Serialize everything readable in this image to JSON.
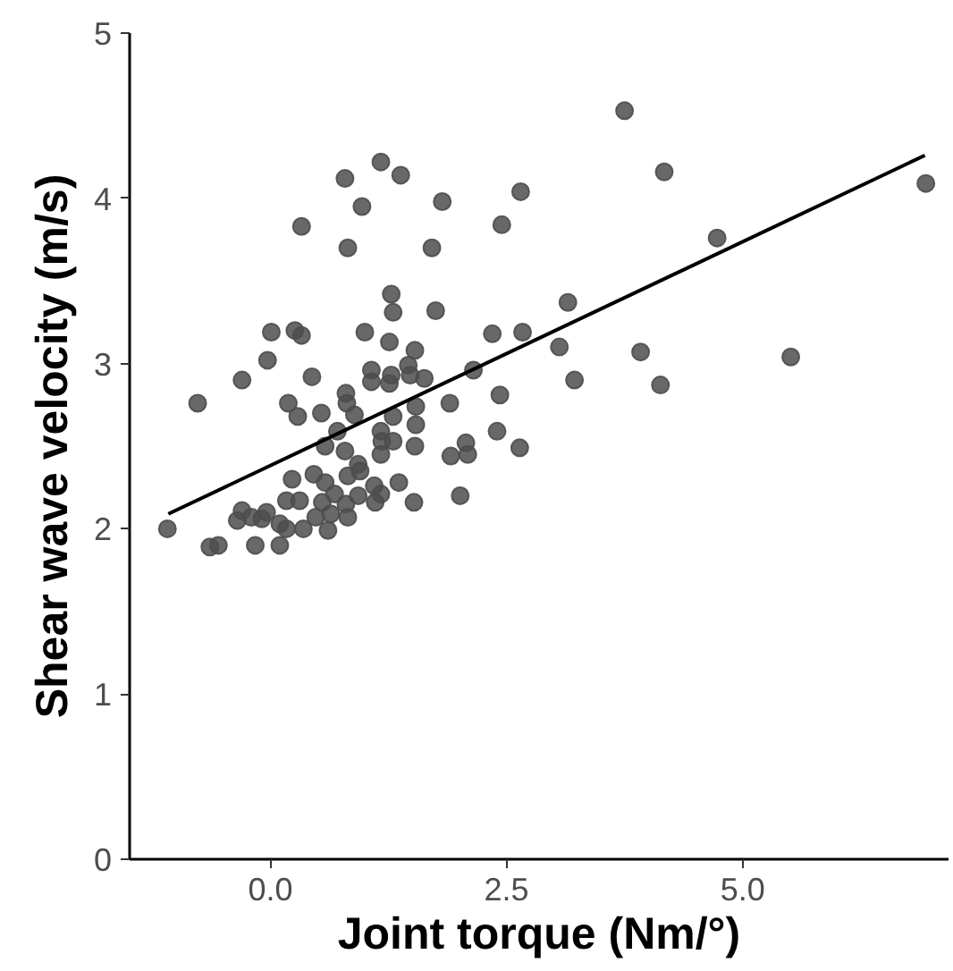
{
  "chart_data": {
    "type": "scatter",
    "xlabel": "Joint torque (Nm/°)",
    "ylabel": "Shear wave velocity (m/s)",
    "xlim": [
      -1.49,
      7.18
    ],
    "ylim": [
      0,
      5
    ],
    "xticks": [
      {
        "value": 0,
        "label": "0.0"
      },
      {
        "value": 2.5,
        "label": "2.5"
      },
      {
        "value": 5,
        "label": "5.0"
      }
    ],
    "yticks": [
      0,
      1,
      2,
      3,
      4,
      5
    ],
    "grid": false,
    "series": [
      {
        "marker": "circle",
        "color": "#4d4d4d",
        "x": [
          -1.09,
          -0.77,
          -0.64,
          -0.55,
          -0.3,
          -0.03,
          0.01,
          0.26,
          0.33,
          0.44,
          0.19,
          0.29,
          0.54,
          -0.35,
          -0.3,
          -0.2,
          -0.09,
          -0.04,
          -0.16,
          0.1,
          0.1,
          0.17,
          0.35,
          0.17,
          0.31,
          0.23,
          0.46,
          0.58,
          0.48,
          0.55,
          0.61,
          0.64,
          0.68,
          0.8,
          0.82,
          0.82,
          0.93,
          0.95,
          0.93,
          1.1,
          1.17,
          1.11,
          1.36,
          1.52,
          2.01,
          0.58,
          0.71,
          0.79,
          0.8,
          0.81,
          0.89,
          1.0,
          1.07,
          1.07,
          1.17,
          1.18,
          1.17,
          1.3,
          1.3,
          1.26,
          1.26,
          1.28,
          1.28,
          1.3,
          1.46,
          1.48,
          1.53,
          1.63,
          1.54,
          1.54,
          1.53,
          1.75,
          1.9,
          1.91,
          2.07,
          2.09,
          2.15,
          2.35,
          2.43,
          2.4,
          2.64,
          2.67,
          3.06,
          3.15,
          3.22,
          1.17,
          0.79,
          1.38,
          0.97,
          1.82,
          2.65,
          0.33,
          0.82,
          1.71,
          2.45,
          3.75,
          4.17,
          4.73,
          6.94,
          3.92,
          5.51,
          4.13
        ],
        "values": [
          2.0,
          2.76,
          1.89,
          1.9,
          2.9,
          3.02,
          3.19,
          3.2,
          3.17,
          2.92,
          2.76,
          2.68,
          2.7,
          2.05,
          2.11,
          2.07,
          2.06,
          2.1,
          1.9,
          1.9,
          2.03,
          2.0,
          2.0,
          2.17,
          2.17,
          2.3,
          2.33,
          2.28,
          2.07,
          2.16,
          1.99,
          2.09,
          2.21,
          2.15,
          2.07,
          2.32,
          2.39,
          2.35,
          2.2,
          2.26,
          2.21,
          2.16,
          2.28,
          2.16,
          2.2,
          2.5,
          2.59,
          2.47,
          2.82,
          2.76,
          2.69,
          3.19,
          2.96,
          2.89,
          2.59,
          2.53,
          2.45,
          2.53,
          2.68,
          3.13,
          2.88,
          2.93,
          3.42,
          3.31,
          2.99,
          2.93,
          3.08,
          2.91,
          2.74,
          2.63,
          2.5,
          3.32,
          2.76,
          2.44,
          2.52,
          2.45,
          2.96,
          3.18,
          2.81,
          2.59,
          2.49,
          3.19,
          3.1,
          3.37,
          2.9,
          4.22,
          4.12,
          4.14,
          3.95,
          3.98,
          4.04,
          3.83,
          3.7,
          3.7,
          3.84,
          4.53,
          4.16,
          3.76,
          4.09,
          3.07,
          3.04,
          2.87
        ]
      },
      {
        "type": "line",
        "color": "#000000",
        "x": [
          -1.08,
          6.93
        ],
        "values": [
          2.09,
          4.26
        ]
      }
    ]
  }
}
